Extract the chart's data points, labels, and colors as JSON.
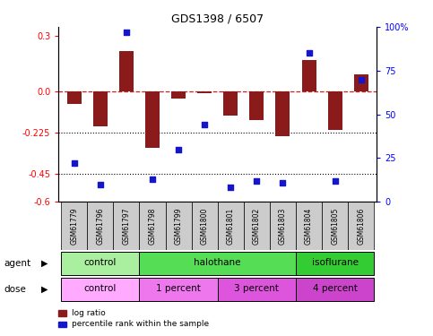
{
  "title": "GDS1398 / 6507",
  "samples": [
    "GSM61779",
    "GSM61796",
    "GSM61797",
    "GSM61798",
    "GSM61799",
    "GSM61800",
    "GSM61801",
    "GSM61802",
    "GSM61803",
    "GSM61804",
    "GSM61805",
    "GSM61806"
  ],
  "log_ratio": [
    -0.07,
    -0.19,
    0.22,
    -0.31,
    -0.04,
    -0.01,
    -0.13,
    -0.155,
    -0.245,
    0.17,
    -0.21,
    0.09
  ],
  "percentile_rank": [
    22,
    10,
    97,
    13,
    30,
    44,
    8,
    12,
    11,
    85,
    12,
    70
  ],
  "ylim_left": [
    -0.6,
    0.35
  ],
  "ylim_right": [
    0,
    100
  ],
  "yticks_left": [
    0.3,
    0.0,
    -0.225,
    -0.45,
    -0.6
  ],
  "yticks_right": [
    100,
    75,
    50,
    25,
    0
  ],
  "hlines": [
    -0.225,
    -0.45
  ],
  "bar_color": "#8B1A1A",
  "dot_color": "#1515CC",
  "dashed_line_color": "#CC2222",
  "agent_groups": [
    {
      "label": "control",
      "start": 0,
      "end": 3,
      "color": "#AAEEA0"
    },
    {
      "label": "halothane",
      "start": 3,
      "end": 9,
      "color": "#55DD55"
    },
    {
      "label": "isoflurane",
      "start": 9,
      "end": 12,
      "color": "#33CC33"
    }
  ],
  "dose_groups": [
    {
      "label": "control",
      "start": 0,
      "end": 3,
      "color": "#FFAAFF"
    },
    {
      "label": "1 percent",
      "start": 3,
      "end": 6,
      "color": "#EE77EE"
    },
    {
      "label": "3 percent",
      "start": 6,
      "end": 9,
      "color": "#DD55DD"
    },
    {
      "label": "4 percent",
      "start": 9,
      "end": 12,
      "color": "#CC44CC"
    }
  ],
  "legend_items": [
    {
      "label": "log ratio",
      "color": "#8B1A1A"
    },
    {
      "label": "percentile rank within the sample",
      "color": "#1515CC"
    }
  ],
  "agent_label": "agent",
  "dose_label": "dose",
  "sample_bg": "#CCCCCC"
}
